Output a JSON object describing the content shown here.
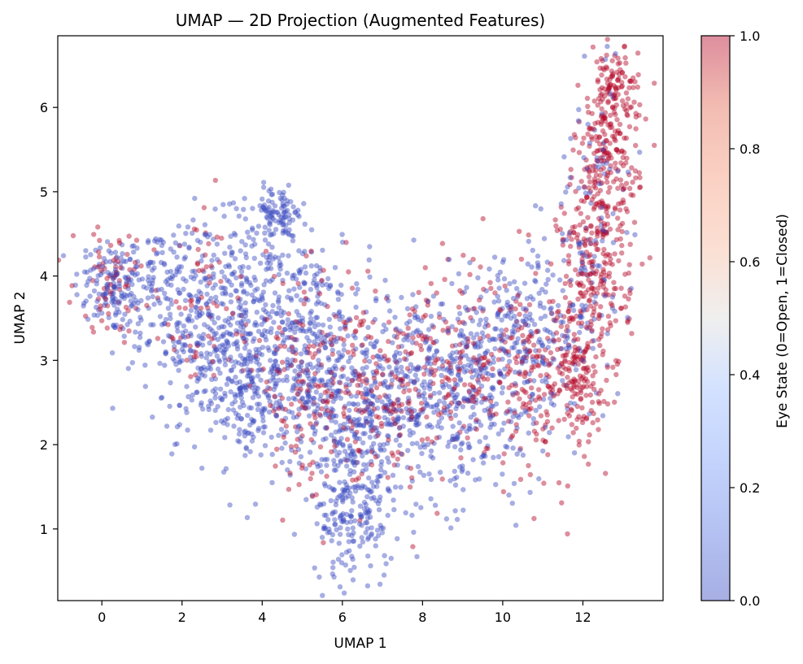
{
  "chart_data": {
    "type": "scatter",
    "title": "UMAP — 2D Projection (Augmented Features)",
    "xlabel": "UMAP 1",
    "ylabel": "UMAP 2",
    "xlim": [
      -1.1,
      14.0
    ],
    "ylim": [
      0.15,
      6.85
    ],
    "xticks": [
      0,
      2,
      4,
      6,
      8,
      10,
      12
    ],
    "yticks": [
      1,
      2,
      3,
      4,
      5,
      6
    ],
    "grid": false,
    "colormap": "coolwarm",
    "point_alpha": 0.45,
    "colorbar": {
      "label": "Eye State (0=Open, 1=Closed)",
      "range": [
        0.0,
        1.0
      ],
      "ticks": [
        "0.0",
        "0.2",
        "0.4",
        "0.6",
        "0.8",
        "1.0"
      ]
    },
    "series": [
      {
        "label_value": 0,
        "color": "#3b4cc0",
        "clusters": [
          {
            "cx": 0.2,
            "cy": 3.9,
            "sx": 0.45,
            "sy": 0.3,
            "n": 110
          },
          {
            "cx": 1.2,
            "cy": 3.9,
            "sx": 0.6,
            "sy": 0.35,
            "n": 110
          },
          {
            "cx": 2.4,
            "cy": 3.4,
            "sx": 0.7,
            "sy": 0.6,
            "n": 230
          },
          {
            "cx": 3.6,
            "cy": 3.6,
            "sx": 0.8,
            "sy": 0.6,
            "n": 240
          },
          {
            "cx": 4.4,
            "cy": 4.75,
            "sx": 0.35,
            "sy": 0.15,
            "n": 90
          },
          {
            "cx": 3.6,
            "cy": 2.6,
            "sx": 0.7,
            "sy": 0.4,
            "n": 190
          },
          {
            "cx": 5.0,
            "cy": 3.3,
            "sx": 0.7,
            "sy": 0.6,
            "n": 250
          },
          {
            "cx": 6.2,
            "cy": 2.4,
            "sx": 0.8,
            "sy": 0.6,
            "n": 300
          },
          {
            "cx": 6.3,
            "cy": 1.2,
            "sx": 0.5,
            "sy": 0.45,
            "n": 190
          },
          {
            "cx": 7.7,
            "cy": 2.7,
            "sx": 0.9,
            "sy": 0.6,
            "n": 280
          },
          {
            "cx": 9.3,
            "cy": 2.6,
            "sx": 0.9,
            "sy": 0.6,
            "n": 260
          },
          {
            "cx": 10.4,
            "cy": 3.4,
            "sx": 0.8,
            "sy": 0.5,
            "n": 170
          },
          {
            "cx": 11.6,
            "cy": 3.4,
            "sx": 0.5,
            "sy": 0.6,
            "n": 80
          },
          {
            "cx": 12.3,
            "cy": 4.8,
            "sx": 0.5,
            "sy": 0.9,
            "n": 80
          }
        ]
      },
      {
        "label_value": 1,
        "color": "#b40426",
        "clusters": [
          {
            "cx": 0.3,
            "cy": 3.95,
            "sx": 0.5,
            "sy": 0.3,
            "n": 70
          },
          {
            "cx": 2.6,
            "cy": 3.6,
            "sx": 0.8,
            "sy": 0.6,
            "n": 70
          },
          {
            "cx": 5.0,
            "cy": 2.7,
            "sx": 0.6,
            "sy": 0.6,
            "n": 130
          },
          {
            "cx": 6.6,
            "cy": 2.5,
            "sx": 0.7,
            "sy": 0.5,
            "n": 130
          },
          {
            "cx": 8.2,
            "cy": 2.9,
            "sx": 0.8,
            "sy": 0.5,
            "n": 140
          },
          {
            "cx": 9.7,
            "cy": 3.0,
            "sx": 0.8,
            "sy": 0.6,
            "n": 110
          },
          {
            "cx": 11.0,
            "cy": 2.7,
            "sx": 0.6,
            "sy": 0.5,
            "n": 150
          },
          {
            "cx": 11.9,
            "cy": 2.9,
            "sx": 0.35,
            "sy": 0.35,
            "n": 110
          },
          {
            "cx": 12.3,
            "cy": 4.0,
            "sx": 0.45,
            "sy": 0.6,
            "n": 230
          },
          {
            "cx": 12.6,
            "cy": 5.3,
            "sx": 0.4,
            "sy": 0.45,
            "n": 200
          },
          {
            "cx": 12.8,
            "cy": 6.2,
            "sx": 0.3,
            "sy": 0.25,
            "n": 110
          }
        ]
      }
    ]
  }
}
